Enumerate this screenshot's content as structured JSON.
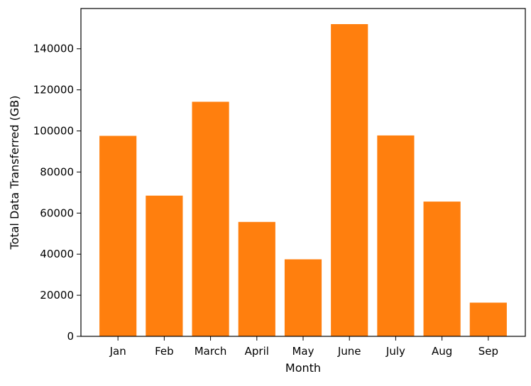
{
  "chart_data": {
    "type": "bar",
    "categories": [
      "Jan",
      "Feb",
      "March",
      "April",
      "May",
      "June",
      "July",
      "Aug",
      "Sep"
    ],
    "values": [
      97600,
      68500,
      114200,
      55700,
      37500,
      152000,
      97800,
      65600,
      16400
    ],
    "xlabel": "Month",
    "ylabel": "Total Data Transferred (GB)",
    "ylim": [
      0,
      159600
    ],
    "yticks": [
      0,
      20000,
      40000,
      60000,
      80000,
      100000,
      120000,
      140000
    ],
    "bar_color": "#ff7f0e",
    "grid": false
  }
}
